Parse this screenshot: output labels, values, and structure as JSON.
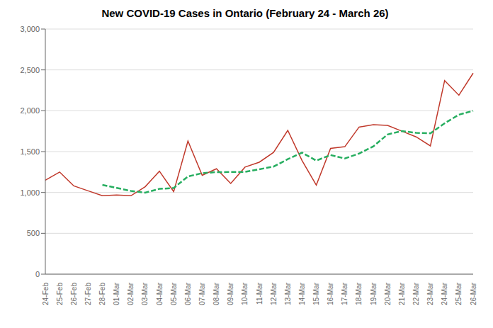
{
  "chart_data": {
    "type": "line",
    "title": "New COVID-19 Cases in Ontario (February 24 - March 26)",
    "categories": [
      "24-Feb",
      "25-Feb",
      "26-Feb",
      "27-Feb",
      "28-Feb",
      "01-Mar",
      "02-Mar",
      "03-Mar",
      "04-Mar",
      "05-Mar",
      "06-Mar",
      "07-Mar",
      "08-Mar",
      "09-Mar",
      "10-Mar",
      "11-Mar",
      "12-Mar",
      "13-Mar",
      "14-Mar",
      "15-Mar",
      "16-Mar",
      "17-Mar",
      "18-Mar",
      "19-Mar",
      "20-Mar",
      "21-Mar",
      "22-Mar",
      "23-Mar",
      "24-Mar",
      "25-Mar",
      "26-Mar"
    ],
    "series": [
      {
        "color": "#c0392b",
        "line_style": "solid",
        "values": [
          1150,
          1250,
          1080,
          1020,
          960,
          970,
          960,
          1070,
          1260,
          1010,
          1630,
          1210,
          1290,
          1110,
          1310,
          1370,
          1490,
          1760,
          1390,
          1090,
          1540,
          1560,
          1800,
          1830,
          1820,
          1750,
          1680,
          1570,
          2370,
          2190,
          2460
        ]
      },
      {
        "color": "#27ae60",
        "line_style": "dashed",
        "values": [
          null,
          null,
          null,
          null,
          1092,
          1056,
          1018,
          998,
          1044,
          1054,
          1196,
          1236,
          1249,
          1250,
          1252,
          1284,
          1316,
          1407,
          1487,
          1390,
          1458,
          1416,
          1476,
          1564,
          1710,
          1752,
          1730,
          1724,
          1847,
          1952,
          2000
        ]
      }
    ],
    "ylim": [
      0,
      3000
    ],
    "yticks": [
      0,
      500,
      {
        "value": 1000,
        "label": "1,000"
      },
      {
        "value": 1500,
        "label": "1,500"
      },
      {
        "value": 2000,
        "label": "2,000"
      },
      {
        "value": 2500,
        "label": "2,500"
      },
      {
        "value": 3000,
        "label": "3,000"
      }
    ],
    "grid": true
  }
}
